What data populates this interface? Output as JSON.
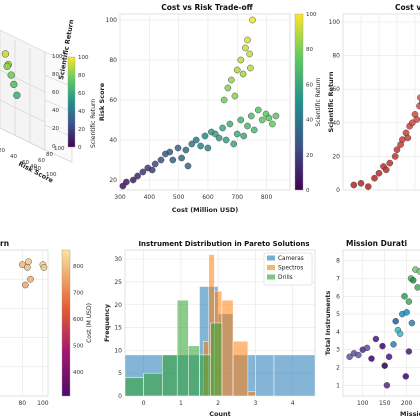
{
  "chart_data": [
    {
      "panel": "3d-scatter",
      "type": "scatter",
      "title": "",
      "xlabel": "Risk Score",
      "ylabel": "",
      "zlabel": "Scientific Return",
      "ztick_labels": [
        "0",
        "20",
        "40",
        "60",
        "80",
        "100"
      ],
      "zlim": [
        0,
        100
      ],
      "xtick_labels_visible": [
        "20",
        "40",
        "60",
        "80",
        "100"
      ],
      "ytick_labels_visible": [
        "40",
        "60",
        "80",
        "100"
      ],
      "ylim_visible": [
        20,
        100
      ],
      "colorbar": {
        "label": "Scientific Return",
        "ticks": [
          "0",
          "20",
          "40",
          "60",
          "80",
          "100"
        ],
        "range": [
          0,
          100
        ],
        "colormap": "viridis"
      },
      "points": [
        {
          "risk": 22,
          "ret": 92
        },
        {
          "risk": 35,
          "ret": 85
        },
        {
          "risk": 48,
          "ret": 78
        },
        {
          "risk": 60,
          "ret": 72
        },
        {
          "risk": 74,
          "ret": 65
        },
        {
          "risk": 30,
          "ret": 82
        }
      ]
    },
    {
      "panel": "cost-vs-risk",
      "type": "scatter",
      "title": "Cost vs Risk Trade-off",
      "xlabel": "Cost (Million USD)",
      "ylabel": "Risk Score",
      "xlim": [
        300,
        880
      ],
      "ylim": [
        15,
        103
      ],
      "xticks": [
        300,
        400,
        500,
        600,
        700,
        800
      ],
      "yticks": [
        20,
        40,
        60,
        80,
        100
      ],
      "grid": true,
      "colorbar": {
        "label": "Scientific Return",
        "ticks": [
          "0",
          "20",
          "40",
          "60",
          "80",
          "100"
        ],
        "range": [
          0,
          100
        ],
        "colormap": "viridis"
      },
      "points": [
        {
          "x": 310,
          "y": 17,
          "c": 5
        },
        {
          "x": 322,
          "y": 19,
          "c": 8
        },
        {
          "x": 345,
          "y": 20,
          "c": 10
        },
        {
          "x": 360,
          "y": 22,
          "c": 12
        },
        {
          "x": 378,
          "y": 24,
          "c": 15
        },
        {
          "x": 395,
          "y": 26,
          "c": 17
        },
        {
          "x": 410,
          "y": 25,
          "c": 18
        },
        {
          "x": 420,
          "y": 28,
          "c": 22
        },
        {
          "x": 440,
          "y": 30,
          "c": 24
        },
        {
          "x": 455,
          "y": 33,
          "c": 27
        },
        {
          "x": 470,
          "y": 34,
          "c": 29
        },
        {
          "x": 480,
          "y": 30,
          "c": 31
        },
        {
          "x": 498,
          "y": 36,
          "c": 32
        },
        {
          "x": 510,
          "y": 31,
          "c": 34
        },
        {
          "x": 525,
          "y": 35,
          "c": 36
        },
        {
          "x": 532,
          "y": 27,
          "c": 33
        },
        {
          "x": 545,
          "y": 38,
          "c": 40
        },
        {
          "x": 560,
          "y": 40,
          "c": 42
        },
        {
          "x": 575,
          "y": 37,
          "c": 45
        },
        {
          "x": 590,
          "y": 42,
          "c": 48
        },
        {
          "x": 600,
          "y": 36,
          "c": 47
        },
        {
          "x": 612,
          "y": 44,
          "c": 55
        },
        {
          "x": 625,
          "y": 43,
          "c": 58
        },
        {
          "x": 638,
          "y": 41,
          "c": 56
        },
        {
          "x": 650,
          "y": 46,
          "c": 60
        },
        {
          "x": 662,
          "y": 40,
          "c": 57
        },
        {
          "x": 675,
          "y": 48,
          "c": 63
        },
        {
          "x": 688,
          "y": 38,
          "c": 60
        },
        {
          "x": 700,
          "y": 43,
          "c": 62
        },
        {
          "x": 712,
          "y": 50,
          "c": 66
        },
        {
          "x": 722,
          "y": 42,
          "c": 61
        },
        {
          "x": 735,
          "y": 47,
          "c": 67
        },
        {
          "x": 748,
          "y": 52,
          "c": 70
        },
        {
          "x": 758,
          "y": 45,
          "c": 68
        },
        {
          "x": 772,
          "y": 55,
          "c": 72
        },
        {
          "x": 785,
          "y": 50,
          "c": 75
        },
        {
          "x": 798,
          "y": 53,
          "c": 74
        },
        {
          "x": 808,
          "y": 51,
          "c": 72
        },
        {
          "x": 820,
          "y": 48,
          "c": 76
        },
        {
          "x": 832,
          "y": 52,
          "c": 74
        },
        {
          "x": 655,
          "y": 60,
          "c": 78
        },
        {
          "x": 668,
          "y": 66,
          "c": 80
        },
        {
          "x": 680,
          "y": 70,
          "c": 84
        },
        {
          "x": 692,
          "y": 62,
          "c": 82
        },
        {
          "x": 700,
          "y": 75,
          "c": 88
        },
        {
          "x": 712,
          "y": 80,
          "c": 90
        },
        {
          "x": 720,
          "y": 73,
          "c": 86
        },
        {
          "x": 728,
          "y": 86,
          "c": 92
        },
        {
          "x": 735,
          "y": 90,
          "c": 94
        },
        {
          "x": 742,
          "y": 83,
          "c": 91
        },
        {
          "x": 752,
          "y": 100,
          "c": 98
        },
        {
          "x": 745,
          "y": 76,
          "c": 89
        }
      ]
    },
    {
      "panel": "return-vs-cost",
      "type": "scatter",
      "title": "",
      "ylabel": "Scientific Return",
      "ylim": [
        0,
        100
      ],
      "yticks": [
        0,
        20,
        40,
        60,
        80,
        100
      ],
      "xlim": [
        0,
        100
      ],
      "grid": true,
      "points": [
        {
          "x": 12,
          "y": 3
        },
        {
          "x": 20,
          "y": 4
        },
        {
          "x": 28,
          "y": 2
        },
        {
          "x": 35,
          "y": 7
        },
        {
          "x": 40,
          "y": 10
        },
        {
          "x": 45,
          "y": 14
        },
        {
          "x": 48,
          "y": 12
        },
        {
          "x": 52,
          "y": 16
        },
        {
          "x": 58,
          "y": 20
        },
        {
          "x": 60,
          "y": 24
        },
        {
          "x": 64,
          "y": 27
        },
        {
          "x": 66,
          "y": 30
        },
        {
          "x": 70,
          "y": 34
        },
        {
          "x": 72,
          "y": 31
        },
        {
          "x": 74,
          "y": 38
        },
        {
          "x": 77,
          "y": 40
        },
        {
          "x": 80,
          "y": 45
        },
        {
          "x": 82,
          "y": 42
        },
        {
          "x": 85,
          "y": 50
        },
        {
          "x": 86,
          "y": 55
        },
        {
          "x": 88,
          "y": 52
        },
        {
          "x": 90,
          "y": 60
        },
        {
          "x": 92,
          "y": 57
        },
        {
          "x": 94,
          "y": 65
        },
        {
          "x": 95,
          "y": 70
        },
        {
          "x": 97,
          "y": 68
        },
        {
          "x": 98,
          "y": 75
        },
        {
          "x": 99,
          "y": 80
        }
      ]
    },
    {
      "panel": "return-colored-by-cost",
      "type": "scatter",
      "title": "rn",
      "xtick_labels_visible": [
        "80",
        "100"
      ],
      "xlim": [
        0,
        105
      ],
      "ylim": [
        0,
        100
      ],
      "grid": true,
      "colorbar": {
        "label": "Cost (M USD)",
        "ticks": [
          "400",
          "500",
          "600",
          "700",
          "800"
        ],
        "range": [
          310,
          860
        ],
        "colormap": "plasma"
      },
      "points": [
        {
          "x": 80,
          "y": 90,
          "c": 790
        },
        {
          "x": 85,
          "y": 88,
          "c": 800
        },
        {
          "x": 86,
          "y": 92,
          "c": 810
        },
        {
          "x": 88,
          "y": 80,
          "c": 770
        },
        {
          "x": 83,
          "y": 76,
          "c": 760
        },
        {
          "x": 100,
          "y": 90,
          "c": 830
        },
        {
          "x": 101,
          "y": 88,
          "c": 820
        }
      ]
    },
    {
      "panel": "instrument-distribution",
      "type": "bar",
      "title": "Instrument Distribution in Pareto Solutions",
      "xlabel": "Count",
      "ylabel": "Frequency",
      "xlim": [
        -0.5,
        4.6
      ],
      "ylim": [
        0,
        32
      ],
      "xticks": [
        0,
        1,
        2,
        3,
        4
      ],
      "yticks": [
        0,
        5,
        10,
        15,
        20,
        25,
        30
      ],
      "legend": {
        "placement": "upper right",
        "entries": [
          "Cameras",
          "Spectros",
          "Drills"
        ]
      },
      "colors": {
        "Cameras": "#1f77b4",
        "Spectros": "#ff7f0e",
        "Drills": "#2ca02c"
      },
      "series": [
        {
          "name": "Cameras",
          "bins": [
            [
              -0.5,
              0.5,
              9
            ],
            [
              0.5,
              1.5,
              9
            ],
            [
              1.5,
              2.0,
              24
            ],
            [
              2.0,
              2.4,
              18
            ],
            [
              2.4,
              3.0,
              9
            ],
            [
              3.0,
              3.5,
              9
            ],
            [
              3.5,
              4.6,
              9
            ]
          ]
        },
        {
          "name": "Spectros",
          "bins": [
            [
              1.6,
              1.75,
              12
            ],
            [
              1.75,
              1.9,
              31
            ],
            [
              1.9,
              2.1,
              23
            ],
            [
              2.1,
              2.4,
              21
            ],
            [
              2.4,
              2.8,
              12
            ],
            [
              2.8,
              3.0,
              1
            ]
          ]
        },
        {
          "name": "Drills",
          "bins": [
            [
              -0.5,
              0.0,
              4
            ],
            [
              0.0,
              0.5,
              5
            ],
            [
              0.5,
              0.9,
              9
            ],
            [
              0.9,
              1.2,
              21
            ],
            [
              1.2,
              1.5,
              11
            ],
            [
              1.5,
              1.8,
              9
            ],
            [
              1.8,
              2.1,
              16
            ]
          ]
        }
      ]
    },
    {
      "panel": "mission-duration",
      "type": "scatter",
      "title": "Mission Durati",
      "xlabel": "Missio",
      "ylabel": "Total Instruments",
      "xlim": [
        55,
        260
      ],
      "ylim": [
        0.4,
        8.6
      ],
      "xticks": [
        100,
        150,
        200,
        250
      ],
      "yticks": [
        1,
        2,
        3,
        4,
        5,
        6,
        7,
        8
      ],
      "grid": true,
      "points": [
        {
          "x": 70,
          "y": 2.6,
          "c": "#6a51a3"
        },
        {
          "x": 80,
          "y": 2.8,
          "c": "#5e4fa2"
        },
        {
          "x": 90,
          "y": 2.7,
          "c": "#6a51a3"
        },
        {
          "x": 100,
          "y": 3.0,
          "c": "#54278f"
        },
        {
          "x": 110,
          "y": 3.1,
          "c": "#5e4fa2"
        },
        {
          "x": 120,
          "y": 2.5,
          "c": "#3f007d"
        },
        {
          "x": 130,
          "y": 3.6,
          "c": "#4a1486"
        },
        {
          "x": 145,
          "y": 3.2,
          "c": "#3f007d"
        },
        {
          "x": 150,
          "y": 2.1,
          "c": "#2d004b"
        },
        {
          "x": 160,
          "y": 2.6,
          "c": "#4a1486"
        },
        {
          "x": 170,
          "y": 3.3,
          "c": "#2c7fb8"
        },
        {
          "x": 180,
          "y": 4.1,
          "c": "#41b6c4"
        },
        {
          "x": 185,
          "y": 3.9,
          "c": "#41b6c4"
        },
        {
          "x": 190,
          "y": 5.0,
          "c": "#1d91c0"
        },
        {
          "x": 195,
          "y": 6.0,
          "c": "#2ca25f"
        },
        {
          "x": 200,
          "y": 5.1,
          "c": "#1d91c0"
        },
        {
          "x": 205,
          "y": 5.7,
          "c": "#41ab5d"
        },
        {
          "x": 210,
          "y": 7.0,
          "c": "#5aae61"
        },
        {
          "x": 212,
          "y": 4.5,
          "c": "#2c7fb8"
        },
        {
          "x": 215,
          "y": 6.9,
          "c": "#238b45"
        },
        {
          "x": 220,
          "y": 7.5,
          "c": "#74c476"
        },
        {
          "x": 225,
          "y": 6.5,
          "c": "#41ab5d"
        },
        {
          "x": 230,
          "y": 7.4,
          "c": "#74c476"
        },
        {
          "x": 240,
          "y": 6.8,
          "c": "#41ab5d"
        },
        {
          "x": 245,
          "y": 7.4,
          "c": "#78c679"
        },
        {
          "x": 250,
          "y": 7.1,
          "c": "#78c679"
        },
        {
          "x": 155,
          "y": 1.0,
          "c": "#54278f"
        },
        {
          "x": 198,
          "y": 1.5,
          "c": "#3f007d"
        },
        {
          "x": 205,
          "y": 2.9,
          "c": "#4a1486"
        },
        {
          "x": 175,
          "y": 4.6,
          "c": "#225ea8"
        }
      ]
    }
  ]
}
